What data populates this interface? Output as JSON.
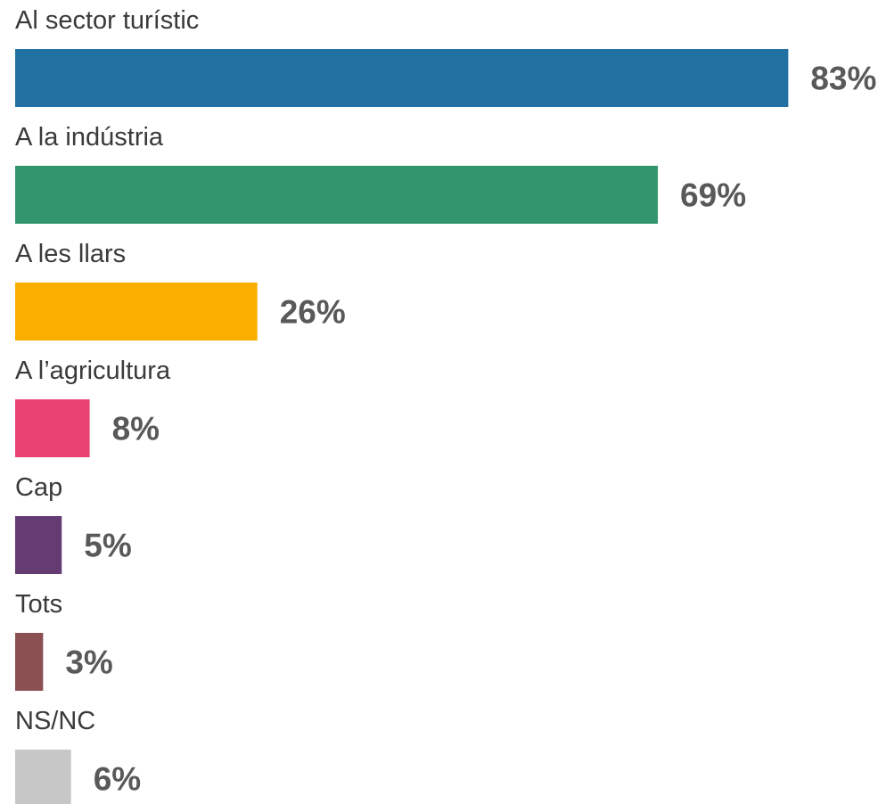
{
  "chart_data": {
    "type": "bar",
    "orientation": "horizontal",
    "categories": [
      "Al sector turístic",
      "A la indústria",
      "A les llars",
      "A l’agricultura",
      "Cap",
      "Tots",
      "NS/NC"
    ],
    "values": [
      83,
      69,
      26,
      8,
      5,
      3,
      6
    ],
    "value_labels": [
      "83%",
      "69%",
      "26%",
      "8%",
      "5%",
      "3%",
      "6%"
    ],
    "colors": [
      "#2271a3",
      "#33956e",
      "#f9ae00",
      "#ea4273",
      "#643b73",
      "#8b5152",
      "#c7c7c7"
    ],
    "xlim": [
      0,
      100
    ],
    "grid": false,
    "legend": "none"
  }
}
